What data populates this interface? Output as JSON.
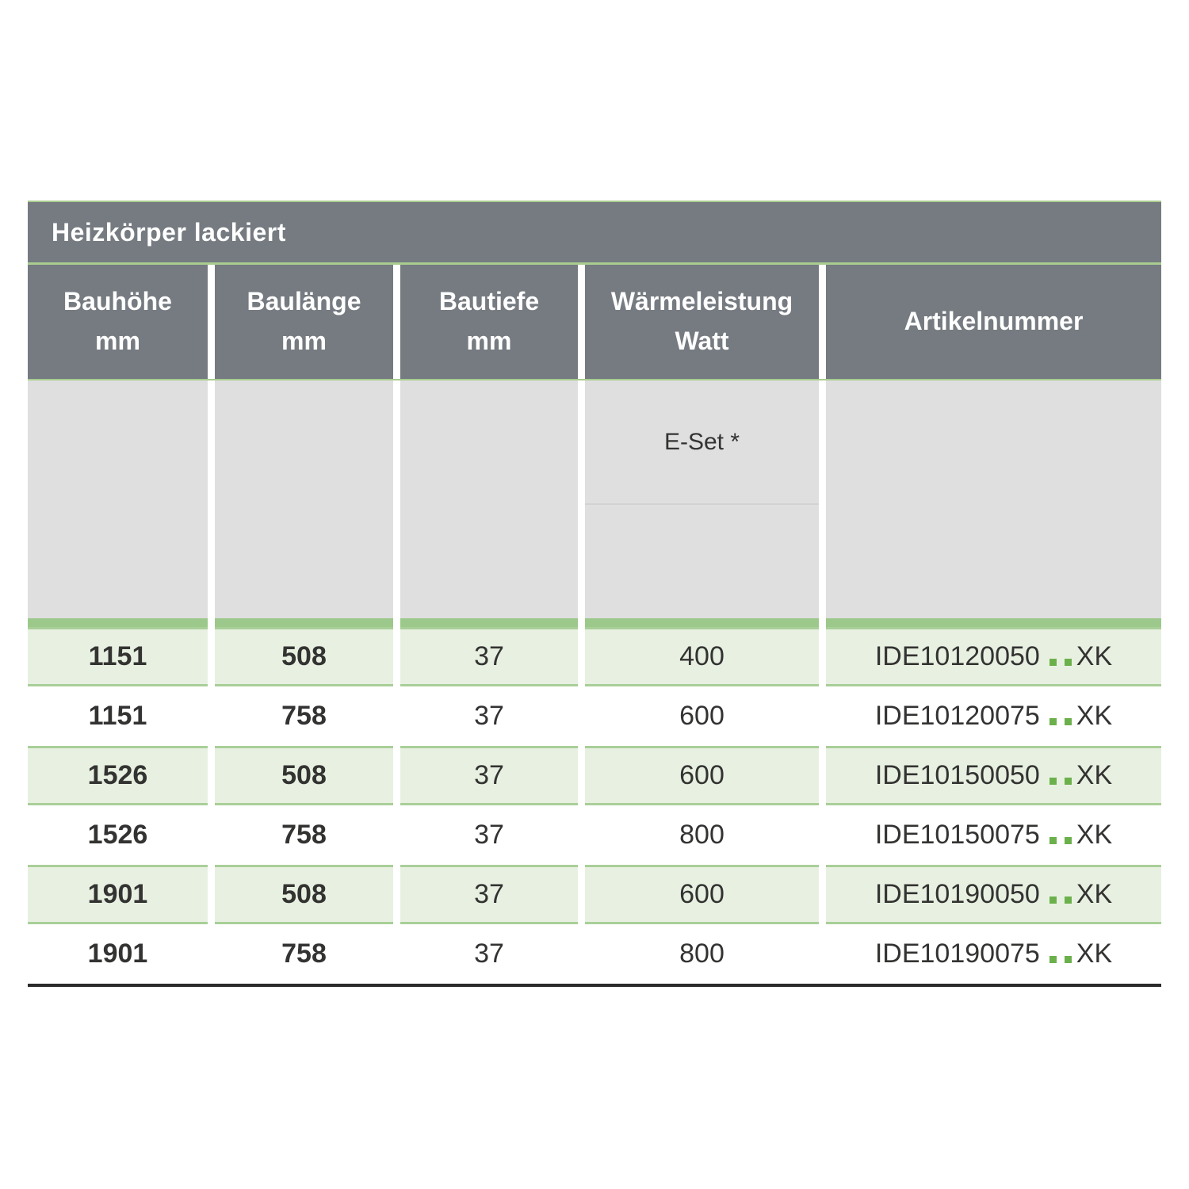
{
  "table": {
    "title": "Heizkörper lackiert",
    "columns": [
      {
        "label": "Bauhöhe",
        "unit": "mm"
      },
      {
        "label": "Baulänge",
        "unit": "mm"
      },
      {
        "label": "Bautiefe",
        "unit": "mm"
      },
      {
        "label": "Wärmeleistung",
        "unit": "Watt"
      },
      {
        "label": "Artikelnummer",
        "unit": ""
      }
    ],
    "subheader": {
      "e_set_label": "E-Set *"
    },
    "rows": [
      {
        "bauhoehe": "1151",
        "baulaenge": "508",
        "bautiefe": "37",
        "watt": "400",
        "article_prefix": "IDE10120050",
        "article_suffix": "XK"
      },
      {
        "bauhoehe": "1151",
        "baulaenge": "758",
        "bautiefe": "37",
        "watt": "600",
        "article_prefix": "IDE10120075",
        "article_suffix": "XK"
      },
      {
        "bauhoehe": "1526",
        "baulaenge": "508",
        "bautiefe": "37",
        "watt": "600",
        "article_prefix": "IDE10150050",
        "article_suffix": "XK"
      },
      {
        "bauhoehe": "1526",
        "baulaenge": "758",
        "bautiefe": "37",
        "watt": "800",
        "article_prefix": "IDE10150075",
        "article_suffix": "XK"
      },
      {
        "bauhoehe": "1901",
        "baulaenge": "508",
        "bautiefe": "37",
        "watt": "600",
        "article_prefix": "IDE10190050",
        "article_suffix": "XK"
      },
      {
        "bauhoehe": "1901",
        "baulaenge": "758",
        "bautiefe": "37",
        "watt": "800",
        "article_prefix": "IDE10190075",
        "article_suffix": "XK"
      }
    ],
    "colors": {
      "header-gray": "#757b80",
      "subheader-gray": "#dfdfe0",
      "subheader-divider": "#d2d2d4",
      "band-green": "#9cc98b",
      "row-green-bg": "#e8f1e1",
      "row-border-green": "#a9cf98",
      "hairline-green": "#a9cc90",
      "dot-green": "#6cb04c",
      "text-dark": "#333332",
      "bottom-rule": "#2b2b2b"
    }
  }
}
